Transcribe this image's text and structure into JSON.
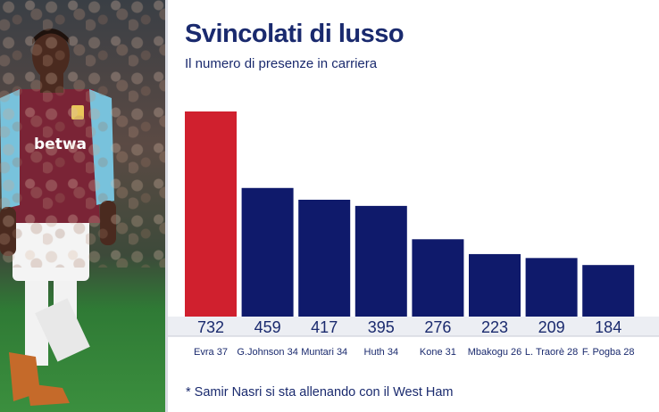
{
  "header": {
    "title": "Svincolati di lusso",
    "subtitle": "Il numero di presenze in carriera"
  },
  "footnote": "* Samir Nasri si sta allenando con il West Ham",
  "colors": {
    "highlight": "#d0202e",
    "bar": "#0f1a6b",
    "text": "#1a2a6e",
    "band": "#eceef3"
  },
  "photo": {
    "kit_sponsor": "betwa"
  },
  "chart_data": {
    "type": "bar",
    "categories": [
      "Evra 37",
      "G.Johnson 34",
      "Muntari 34",
      "Huth 34",
      "Kone 31",
      "Mbakogu 26",
      "L. Traorè 28",
      "F. Pogba 28"
    ],
    "values": [
      732,
      459,
      417,
      395,
      276,
      223,
      209,
      184
    ],
    "highlight_index": 0,
    "title": "Svincolati di lusso",
    "subtitle": "Il numero di presenze in carriera",
    "xlabel": "",
    "ylabel": "",
    "ylim": [
      0,
      732
    ],
    "grid": false,
    "legend": "none"
  }
}
